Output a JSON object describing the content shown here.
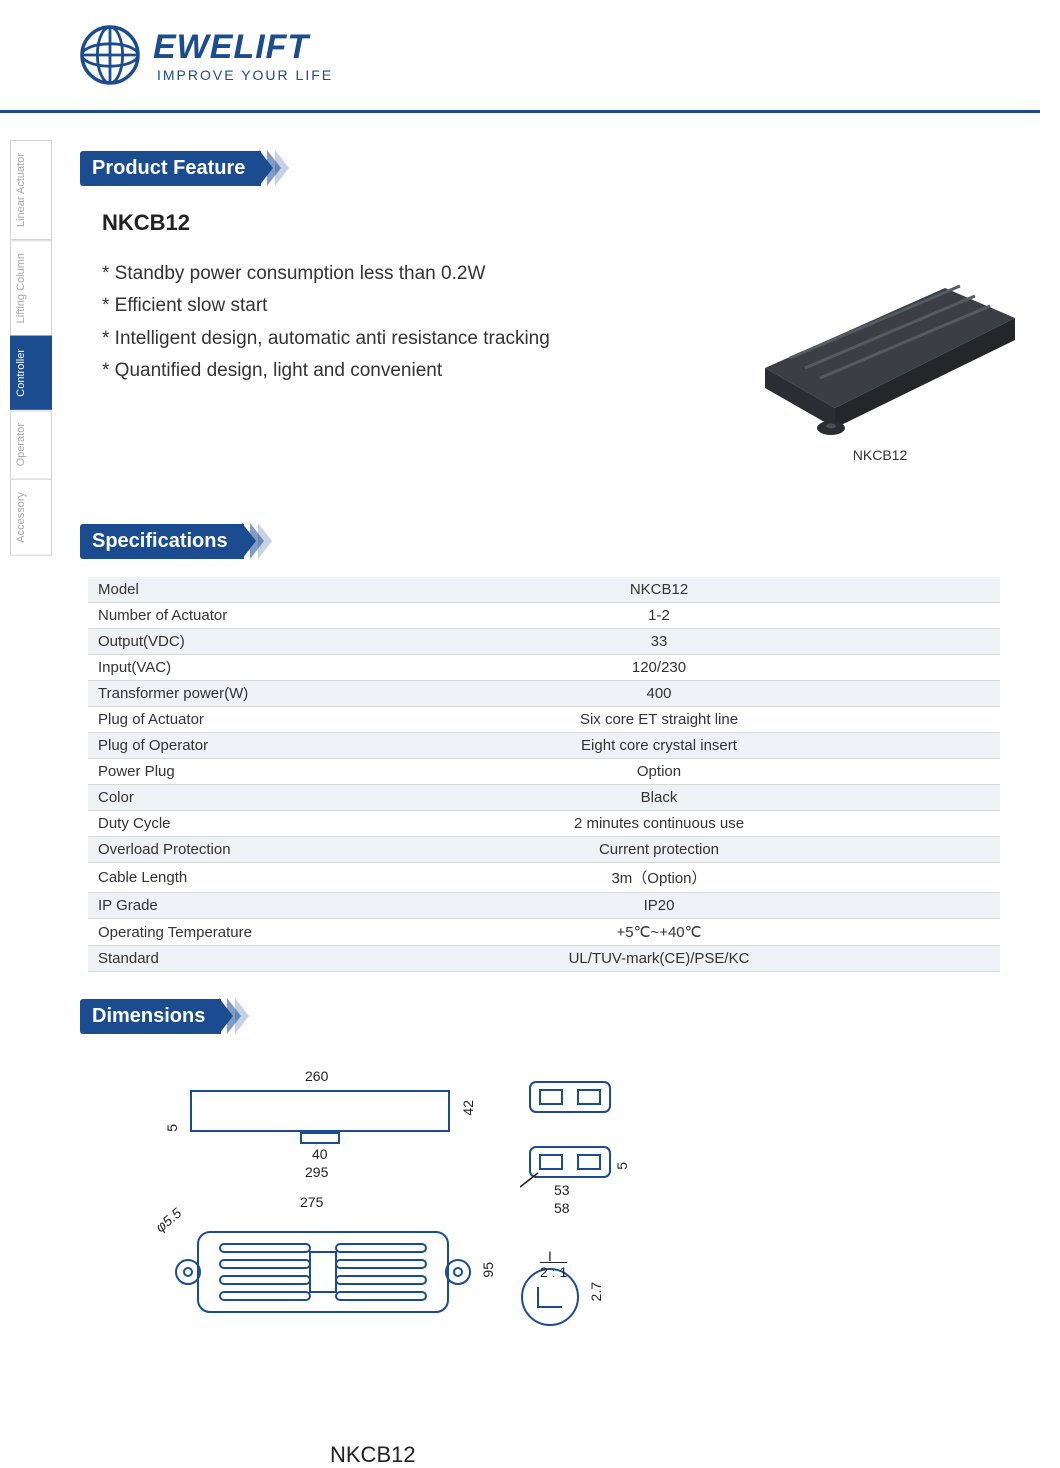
{
  "brand": {
    "name": "EWELIFT",
    "tagline": "IMPROVE YOUR LIFE",
    "color": "#1a4c8f"
  },
  "tabs": [
    {
      "label": "Linear Actuator",
      "active": false
    },
    {
      "label": "Lifting Column",
      "active": false
    },
    {
      "label": "Controller",
      "active": true
    },
    {
      "label": "Operator",
      "active": false
    },
    {
      "label": "Accessory",
      "active": false
    }
  ],
  "sections": {
    "feature": "Product Feature",
    "specs": "Specifications",
    "dims": "Dimensions"
  },
  "product": {
    "model": "NKCB12",
    "image_caption": "NKCB12",
    "features": [
      "* Standby power consumption less than 0.2W",
      "* Efficient slow start",
      "* Intelligent design, automatic anti resistance tracking",
      "* Quantified design, light and convenient"
    ]
  },
  "spec_rows": [
    {
      "k": "Model",
      "v": "NKCB12"
    },
    {
      "k": "Number of Actuator",
      "v": "1-2"
    },
    {
      "k": "Output(VDC)",
      "v": "33"
    },
    {
      "k": "Input(VAC)",
      "v": "120/230"
    },
    {
      "k": "Transformer power(W)",
      "v": "400"
    },
    {
      "k": "Plug of Actuator",
      "v": "Six core ET straight line"
    },
    {
      "k": "Plug of Operator",
      "v": "Eight core crystal insert"
    },
    {
      "k": "Power Plug",
      "v": "Option"
    },
    {
      "k": "Color",
      "v": "Black"
    },
    {
      "k": "Duty Cycle",
      "v": "2 minutes continuous use"
    },
    {
      "k": "Overload Protection",
      "v": "Current protection"
    },
    {
      "k": "Cable Length",
      "v": "3m（Option）"
    },
    {
      "k": "IP Grade",
      "v": "IP20"
    },
    {
      "k": "Operating Temperature",
      "v": "+5℃~+40℃"
    },
    {
      "k": "Standard",
      "v": "UL/TUV-mark(CE)/PSE/KC"
    }
  ],
  "dimensions": {
    "top_length": "260",
    "top_height": "42",
    "tab_width": "40",
    "tab_height": "5",
    "overall_length": "295",
    "mid_length": "275",
    "case_width": "95",
    "hole_dia": "φ5.5",
    "conn_w1": "53",
    "conn_w2": "58",
    "conn_h": "5",
    "scale": "2 : 1",
    "detail_h": "2.7",
    "caption": "NKCB12"
  },
  "colors": {
    "primary": "#1a4c8f",
    "row_alt": "#eef2f7",
    "border": "#d8d8d8",
    "tab_inactive_text": "#a8a8a8"
  }
}
